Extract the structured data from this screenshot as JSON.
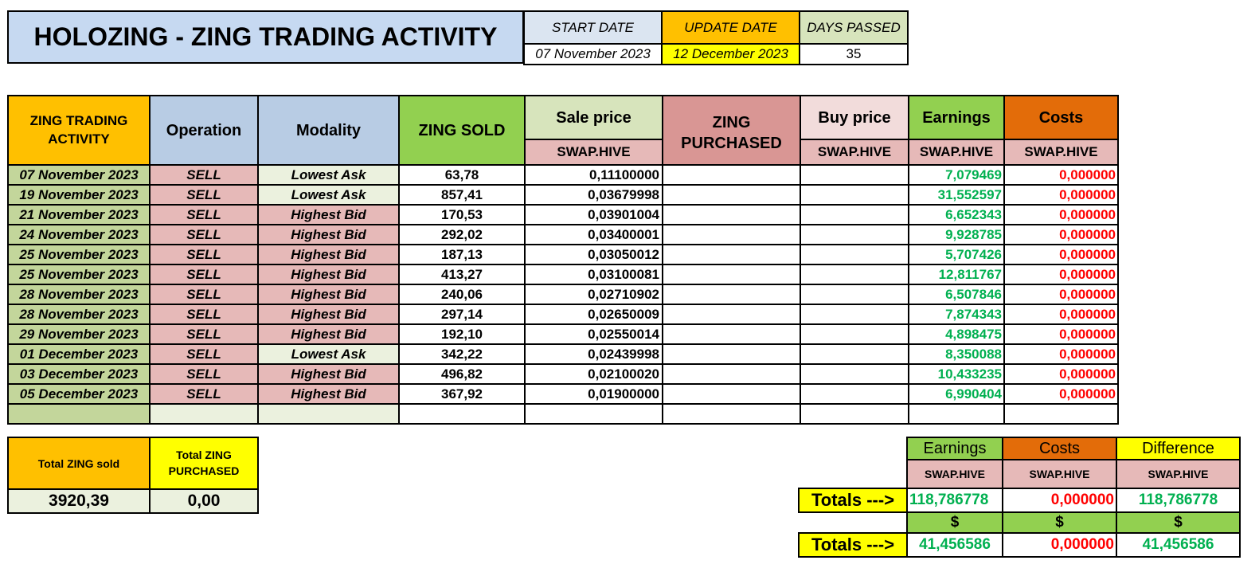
{
  "title": "HOLOZING - ZING TRADING ACTIVITY",
  "info": {
    "start_label": "START DATE",
    "update_label": "UPDATE DATE",
    "days_label": "DAYS PASSED",
    "start_value": "07 November 2023",
    "update_value": "12 December 2023",
    "days_value": "35"
  },
  "table": {
    "headers": {
      "activity": "ZING TRADING ACTIVITY",
      "operation": "Operation",
      "modality": "Modality",
      "sold": "ZING SOLD",
      "sale_price": "Sale price",
      "purchased": "ZING PURCHASED",
      "buy_price": "Buy price",
      "earnings": "Earnings",
      "costs": "Costs",
      "unit": "SWAP.HIVE"
    },
    "rows": [
      {
        "date": "07 November 2023",
        "op": "SELL",
        "mod": "Lowest Ask",
        "sold": "63,78",
        "price": "0,11100000",
        "earn": "7,079469",
        "cost": "0,000000"
      },
      {
        "date": "19 November 2023",
        "op": "SELL",
        "mod": "Lowest Ask",
        "sold": "857,41",
        "price": "0,03679998",
        "earn": "31,552597",
        "cost": "0,000000"
      },
      {
        "date": "21 November 2023",
        "op": "SELL",
        "mod": "Highest Bid",
        "sold": "170,53",
        "price": "0,03901004",
        "earn": "6,652343",
        "cost": "0,000000"
      },
      {
        "date": "24 November 2023",
        "op": "SELL",
        "mod": "Highest Bid",
        "sold": "292,02",
        "price": "0,03400001",
        "earn": "9,928785",
        "cost": "0,000000"
      },
      {
        "date": "25 November 2023",
        "op": "SELL",
        "mod": "Highest Bid",
        "sold": "187,13",
        "price": "0,03050012",
        "earn": "5,707426",
        "cost": "0,000000"
      },
      {
        "date": "25 November 2023",
        "op": "SELL",
        "mod": "Highest Bid",
        "sold": "413,27",
        "price": "0,03100081",
        "earn": "12,811767",
        "cost": "0,000000"
      },
      {
        "date": "28 November 2023",
        "op": "SELL",
        "mod": "Highest Bid",
        "sold": "240,06",
        "price": "0,02710902",
        "earn": "6,507846",
        "cost": "0,000000"
      },
      {
        "date": "28 November 2023",
        "op": "SELL",
        "mod": "Highest Bid",
        "sold": "297,14",
        "price": "0,02650009",
        "earn": "7,874343",
        "cost": "0,000000"
      },
      {
        "date": "29 November 2023",
        "op": "SELL",
        "mod": "Highest Bid",
        "sold": "192,10",
        "price": "0,02550014",
        "earn": "4,898475",
        "cost": "0,000000"
      },
      {
        "date": "01 December 2023",
        "op": "SELL",
        "mod": "Lowest Ask",
        "sold": "342,22",
        "price": "0,02439998",
        "earn": "8,350088",
        "cost": "0,000000"
      },
      {
        "date": "03 December 2023",
        "op": "SELL",
        "mod": "Highest Bid",
        "sold": "496,82",
        "price": "0,02100020",
        "earn": "10,433235",
        "cost": "0,000000"
      },
      {
        "date": "05 December 2023",
        "op": "SELL",
        "mod": "Highest Bid",
        "sold": "367,92",
        "price": "0,01900000",
        "earn": "6,990404",
        "cost": "0,000000"
      }
    ]
  },
  "zing_totals": {
    "sold_label": "Total ZING sold",
    "purchased_label": "Total ZING PURCHASED",
    "sold_value": "3920,39",
    "purchased_value": "0,00"
  },
  "grand_totals": {
    "earnings_label": "Earnings",
    "costs_label": "Costs",
    "difference_label": "Difference",
    "unit": "SWAP.HIVE",
    "totals_label": "Totals --->",
    "hive_earnings": "118,786778",
    "hive_costs": "0,000000",
    "hive_difference": "118,786778",
    "usd_symbol": "$",
    "usd_earnings": "41,456586",
    "usd_costs": "0,000000",
    "usd_difference": "41,456586"
  },
  "colors": {
    "header_blue": "#c6d9f1",
    "orange": "#ffc000",
    "yellow": "#ffff00",
    "green": "#92d050",
    "olive": "#c3d69b",
    "pink": "#e6b9b8",
    "dark_orange": "#e36c09",
    "earnings_text": "#00b050",
    "costs_text": "#ff0000"
  }
}
